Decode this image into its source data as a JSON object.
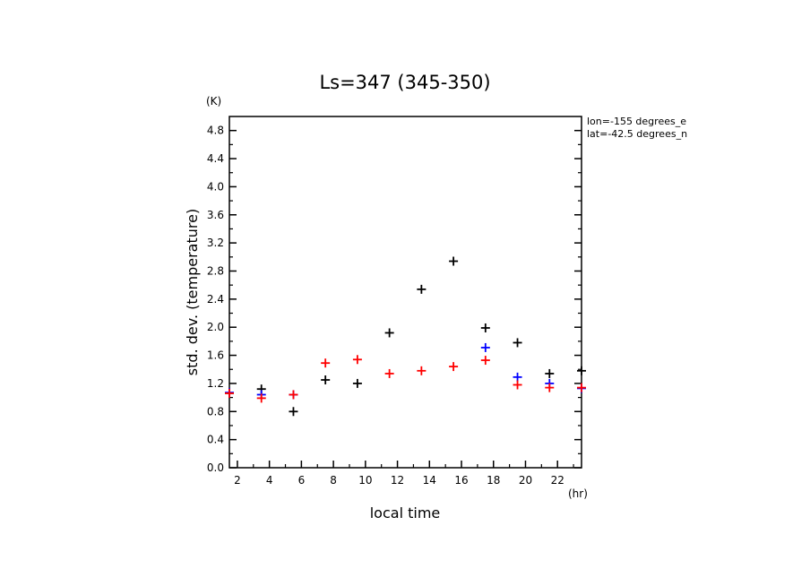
{
  "chart_data": {
    "type": "scatter",
    "title": "Ls=347 (345-350)",
    "xlabel": "local time",
    "ylabel": "std. dev. (temperature)",
    "x_unit": "(hr)",
    "y_unit": "(K)",
    "annotations": [
      "lon=-155 degrees_e",
      "lat=-42.5 degrees_n"
    ],
    "xlim": [
      1.5,
      23.5
    ],
    "ylim": [
      0.0,
      5.0
    ],
    "x_ticks": [
      2,
      4,
      6,
      8,
      10,
      12,
      14,
      16,
      18,
      20,
      22
    ],
    "y_ticks": [
      "0.0",
      "0.4",
      "0.8",
      "1.2",
      "1.6",
      "2.0",
      "2.4",
      "2.8",
      "3.2",
      "3.6",
      "4.0",
      "4.4",
      "4.8"
    ],
    "grid": false,
    "series": [
      {
        "color": "#000000",
        "x": [
          1.5,
          3.5,
          5.5,
          7.5,
          9.5,
          11.5,
          13.5,
          15.5,
          17.5,
          19.5,
          21.5,
          23.5
        ],
        "y": [
          1.06,
          1.12,
          0.8,
          1.25,
          1.2,
          1.92,
          2.54,
          2.94,
          1.99,
          1.78,
          1.34,
          1.38
        ]
      },
      {
        "color": "#0000ff",
        "x": [
          1.5,
          3.5,
          5.5,
          17.5,
          19.5,
          21.5,
          23.5
        ],
        "y": [
          1.07,
          1.04,
          1.04,
          1.71,
          1.29,
          1.2,
          1.13
        ]
      },
      {
        "color": "#ff0000",
        "x": [
          1.5,
          3.5,
          5.5,
          7.5,
          9.5,
          11.5,
          13.5,
          15.5,
          17.5,
          19.5,
          21.5,
          23.5
        ],
        "y": [
          1.06,
          0.99,
          1.04,
          1.49,
          1.54,
          1.34,
          1.38,
          1.44,
          1.53,
          1.18,
          1.14,
          1.14
        ]
      }
    ]
  }
}
